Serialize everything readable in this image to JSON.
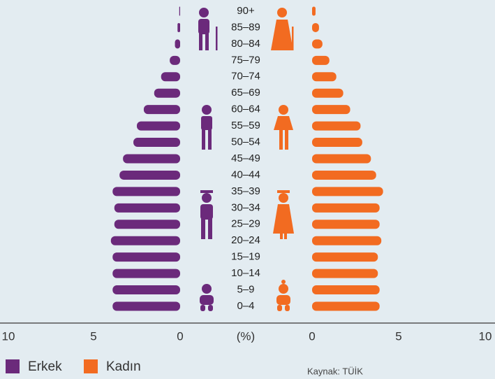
{
  "chart_data": {
    "type": "pyramid",
    "categories": [
      "0–4",
      "5–9",
      "10–14",
      "15–19",
      "20–24",
      "25–29",
      "30–34",
      "35–39",
      "40–44",
      "45–49",
      "50–54",
      "55–59",
      "60–64",
      "65–69",
      "70–74",
      "75–79",
      "80–84",
      "85–89",
      "90+"
    ],
    "series": [
      {
        "name": "Erkek",
        "color": "#6b2a7b",
        "values": [
          3.9,
          3.9,
          3.9,
          3.9,
          4.0,
          3.8,
          3.8,
          3.9,
          3.5,
          3.3,
          2.7,
          2.5,
          2.1,
          1.5,
          1.1,
          0.6,
          0.3,
          0.15,
          0.05
        ]
      },
      {
        "name": "Kadın",
        "color": "#f26b21",
        "values": [
          3.9,
          3.9,
          3.8,
          3.8,
          4.0,
          3.9,
          3.9,
          4.1,
          3.7,
          3.4,
          2.9,
          2.8,
          2.2,
          1.8,
          1.4,
          1.0,
          0.6,
          0.4,
          0.2
        ]
      }
    ],
    "xlim": [
      0,
      10
    ],
    "xticks": [
      0,
      5,
      10
    ],
    "xlabel": "(%)",
    "source": "Kaynak: TÜİK"
  }
}
